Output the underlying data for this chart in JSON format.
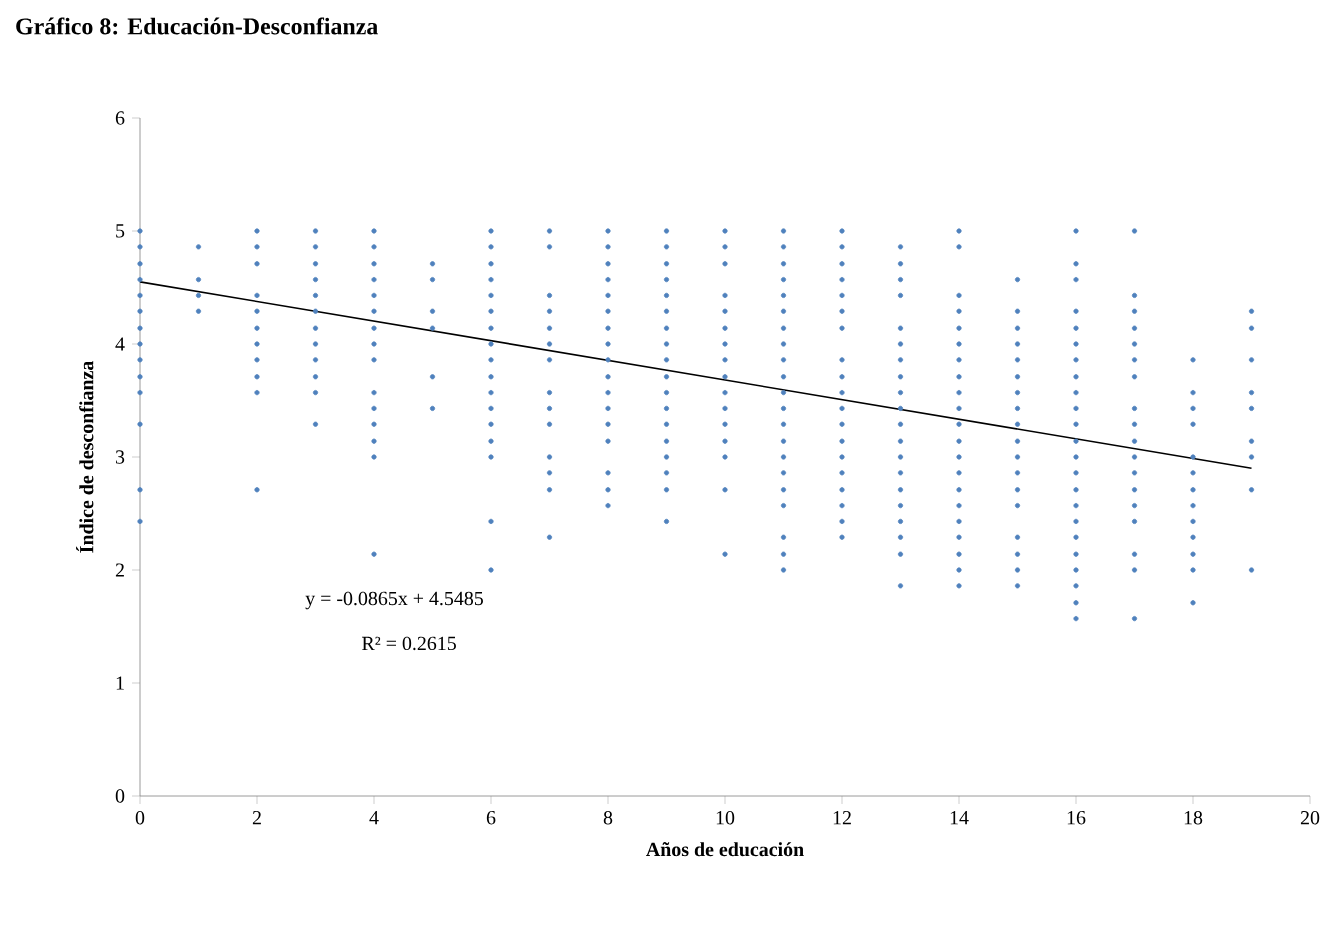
{
  "chart_data": {
    "type": "scatter",
    "title": "Gráfico 8: Educación-Desconfianza",
    "xlabel": "Años de educación",
    "ylabel": "Índice de desconfianza",
    "xlim": [
      0,
      20
    ],
    "xticks": [
      0,
      2,
      4,
      6,
      8,
      10,
      12,
      14,
      16,
      18,
      20
    ],
    "ylim": [
      0,
      6
    ],
    "yticks": [
      0,
      1,
      2,
      3,
      4,
      5,
      6
    ],
    "grid": false,
    "marker": "circle",
    "annotations": [
      "y = -0.0865x + 4.5485",
      "R² = 0.2615"
    ],
    "series": [
      {
        "color": "#4f81bd",
        "x": [
          0,
          0,
          0,
          0,
          0,
          0,
          0,
          0,
          0,
          0,
          0,
          0,
          0,
          0,
          1,
          1,
          1,
          1,
          2,
          2,
          2,
          2,
          2,
          2,
          2,
          2,
          2,
          2,
          2,
          3,
          3,
          3,
          3,
          3,
          3,
          3,
          3,
          3,
          3,
          3,
          3,
          4,
          4,
          4,
          4,
          4,
          4,
          4,
          4,
          4,
          4,
          4,
          4,
          4,
          4,
          4,
          5,
          5,
          5,
          5,
          5,
          5,
          6,
          6,
          6,
          6,
          6,
          6,
          6,
          6,
          6,
          6,
          6,
          6,
          6,
          6,
          6,
          6,
          6,
          7,
          7,
          7,
          7,
          7,
          7,
          7,
          7,
          7,
          7,
          7,
          7,
          7,
          7,
          8,
          8,
          8,
          8,
          8,
          8,
          8,
          8,
          8,
          8,
          8,
          8,
          8,
          8,
          8,
          8,
          8,
          9,
          9,
          9,
          9,
          9,
          9,
          9,
          9,
          9,
          9,
          9,
          9,
          9,
          9,
          9,
          9,
          9,
          9,
          10,
          10,
          10,
          10,
          10,
          10,
          10,
          10,
          10,
          10,
          10,
          10,
          10,
          10,
          10,
          10,
          11,
          11,
          11,
          11,
          11,
          11,
          11,
          11,
          11,
          11,
          11,
          11,
          11,
          11,
          11,
          11,
          11,
          11,
          11,
          11,
          11,
          12,
          12,
          12,
          12,
          12,
          12,
          12,
          12,
          12,
          12,
          12,
          12,
          12,
          12,
          12,
          12,
          12,
          12,
          12,
          13,
          13,
          13,
          13,
          13,
          13,
          13,
          13,
          13,
          13,
          13,
          13,
          13,
          13,
          13,
          13,
          13,
          13,
          13,
          13,
          14,
          14,
          14,
          14,
          14,
          14,
          14,
          14,
          14,
          14,
          14,
          14,
          14,
          14,
          14,
          14,
          14,
          14,
          14,
          14,
          14,
          15,
          15,
          15,
          15,
          15,
          15,
          15,
          15,
          15,
          15,
          15,
          15,
          15,
          15,
          15,
          15,
          15,
          15,
          16,
          16,
          16,
          16,
          16,
          16,
          16,
          16,
          16,
          16,
          16,
          16,
          16,
          16,
          16,
          16,
          16,
          16,
          16,
          16,
          16,
          16,
          16,
          17,
          17,
          17,
          17,
          17,
          17,
          17,
          17,
          17,
          17,
          17,
          17,
          17,
          17,
          17,
          17,
          17,
          17,
          18,
          18,
          18,
          18,
          18,
          18,
          18,
          18,
          18,
          18,
          18,
          18,
          18,
          19,
          19,
          19,
          19,
          19,
          19,
          19,
          19,
          19
        ],
        "values": [
          5,
          4.86,
          4.71,
          4.57,
          4.43,
          4.29,
          4.14,
          4,
          3.86,
          3.71,
          3.57,
          3.29,
          2.71,
          2.43,
          4.86,
          4.57,
          4.43,
          4.29,
          5,
          4.86,
          4.71,
          4.43,
          4.29,
          4.14,
          4,
          3.86,
          3.71,
          3.57,
          2.71,
          5,
          4.86,
          4.71,
          4.57,
          4.43,
          4.29,
          4.14,
          4,
          3.86,
          3.71,
          3.57,
          3.29,
          5,
          4.86,
          4.71,
          4.57,
          4.43,
          4.29,
          4.14,
          4,
          3.86,
          3.57,
          3.43,
          3.29,
          3.14,
          3,
          2.14,
          4.71,
          4.57,
          4.29,
          4.14,
          3.71,
          3.43,
          5,
          4.86,
          4.71,
          4.57,
          4.43,
          4.29,
          4.14,
          4,
          3.86,
          3.71,
          3.57,
          3.43,
          3.29,
          3.14,
          3,
          2.43,
          2,
          5,
          4.86,
          4.43,
          4.29,
          4.14,
          4,
          3.86,
          3.57,
          3.43,
          3.29,
          3,
          2.86,
          2.71,
          2.29,
          5,
          4.86,
          4.71,
          4.57,
          4.43,
          4.29,
          4.14,
          4,
          3.86,
          3.71,
          3.57,
          3.43,
          3.29,
          3.14,
          2.86,
          2.71,
          2.57,
          5,
          4.86,
          4.71,
          4.57,
          4.43,
          4.29,
          4.14,
          4,
          3.86,
          3.71,
          3.57,
          3.43,
          3.29,
          3.14,
          3,
          2.86,
          2.71,
          2.43,
          5,
          4.86,
          4.71,
          4.43,
          4.29,
          4.14,
          4,
          3.86,
          3.71,
          3.57,
          3.43,
          3.29,
          3.14,
          3,
          2.71,
          2.14,
          5,
          4.86,
          4.71,
          4.57,
          4.43,
          4.29,
          4.14,
          4,
          3.86,
          3.71,
          3.57,
          3.43,
          3.29,
          3.14,
          3,
          2.86,
          2.71,
          2.57,
          2.29,
          2.14,
          2,
          5,
          4.86,
          4.71,
          4.57,
          4.43,
          4.29,
          4.14,
          3.86,
          3.71,
          3.57,
          3.43,
          3.29,
          3.14,
          3,
          2.86,
          2.71,
          2.57,
          2.43,
          2.29,
          4.86,
          4.71,
          4.57,
          4.43,
          4.14,
          4,
          3.86,
          3.71,
          3.57,
          3.43,
          3.29,
          3.14,
          3,
          2.86,
          2.71,
          2.57,
          2.43,
          2.29,
          2.14,
          1.86,
          5,
          4.86,
          4.43,
          4.29,
          4.14,
          4,
          3.86,
          3.71,
          3.57,
          3.43,
          3.29,
          3.14,
          3,
          2.86,
          2.71,
          2.57,
          2.43,
          2.29,
          2.14,
          2,
          1.86,
          4.57,
          4.29,
          4.14,
          4,
          3.86,
          3.71,
          3.57,
          3.43,
          3.29,
          3.14,
          3,
          2.86,
          2.71,
          2.57,
          2.29,
          2.14,
          2,
          1.86,
          5,
          4.71,
          4.57,
          4.29,
          4.14,
          4,
          3.86,
          3.71,
          3.57,
          3.43,
          3.29,
          3.14,
          3,
          2.86,
          2.71,
          2.57,
          2.43,
          2.29,
          2.14,
          2,
          1.86,
          1.71,
          1.57,
          5,
          4.43,
          4.29,
          4.14,
          4,
          3.86,
          3.71,
          3.43,
          3.29,
          3.14,
          3,
          2.86,
          2.71,
          2.57,
          2.43,
          2.14,
          2,
          1.57,
          3.86,
          3.57,
          3.43,
          3.29,
          3,
          2.86,
          2.71,
          2.57,
          2.43,
          2.29,
          2.14,
          2,
          1.71,
          4.29,
          4.14,
          3.86,
          3.57,
          3.43,
          3.14,
          3,
          2.71,
          2
        ]
      },
      {
        "type": "line",
        "color": "#000000",
        "marker": "none",
        "x": [
          0,
          19
        ],
        "values": [
          4.55,
          2.9
        ]
      }
    ]
  }
}
